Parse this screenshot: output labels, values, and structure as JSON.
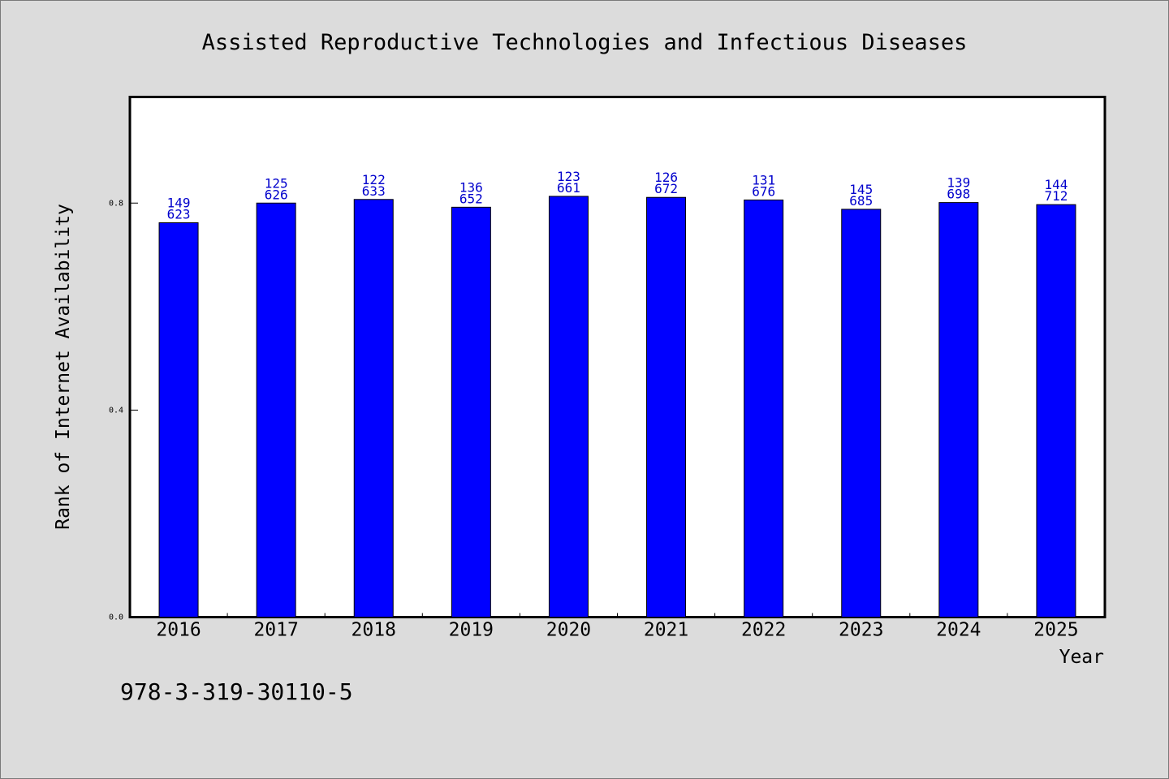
{
  "chart_data": {
    "type": "bar",
    "title": "Assisted Reproductive Technologies and Infectious Diseases",
    "xlabel": "Year",
    "ylabel": "Rank of Internet Availability",
    "categories": [
      "2016",
      "2017",
      "2018",
      "2019",
      "2020",
      "2021",
      "2022",
      "2023",
      "2024",
      "2025"
    ],
    "values": [
      0.762,
      0.8,
      0.807,
      0.792,
      0.813,
      0.811,
      0.806,
      0.788,
      0.801,
      0.797
    ],
    "data_labels_top": [
      "149",
      "125",
      "122",
      "136",
      "123",
      "126",
      "131",
      "145",
      "139",
      "144"
    ],
    "data_labels_bottom": [
      "623",
      "626",
      "633",
      "652",
      "661",
      "672",
      "676",
      "685",
      "698",
      "712"
    ],
    "y_ticks": [
      "0.0",
      "0.4",
      "0.8"
    ],
    "y_tick_values": [
      0.0,
      0.4,
      0.8
    ],
    "ylim": [
      0,
      1.005
    ],
    "bar_color": "#0000ff",
    "label_color": "#0000cc",
    "grid": false,
    "legend": "none"
  },
  "footer": {
    "isbn": "978-3-319-30110-5"
  }
}
